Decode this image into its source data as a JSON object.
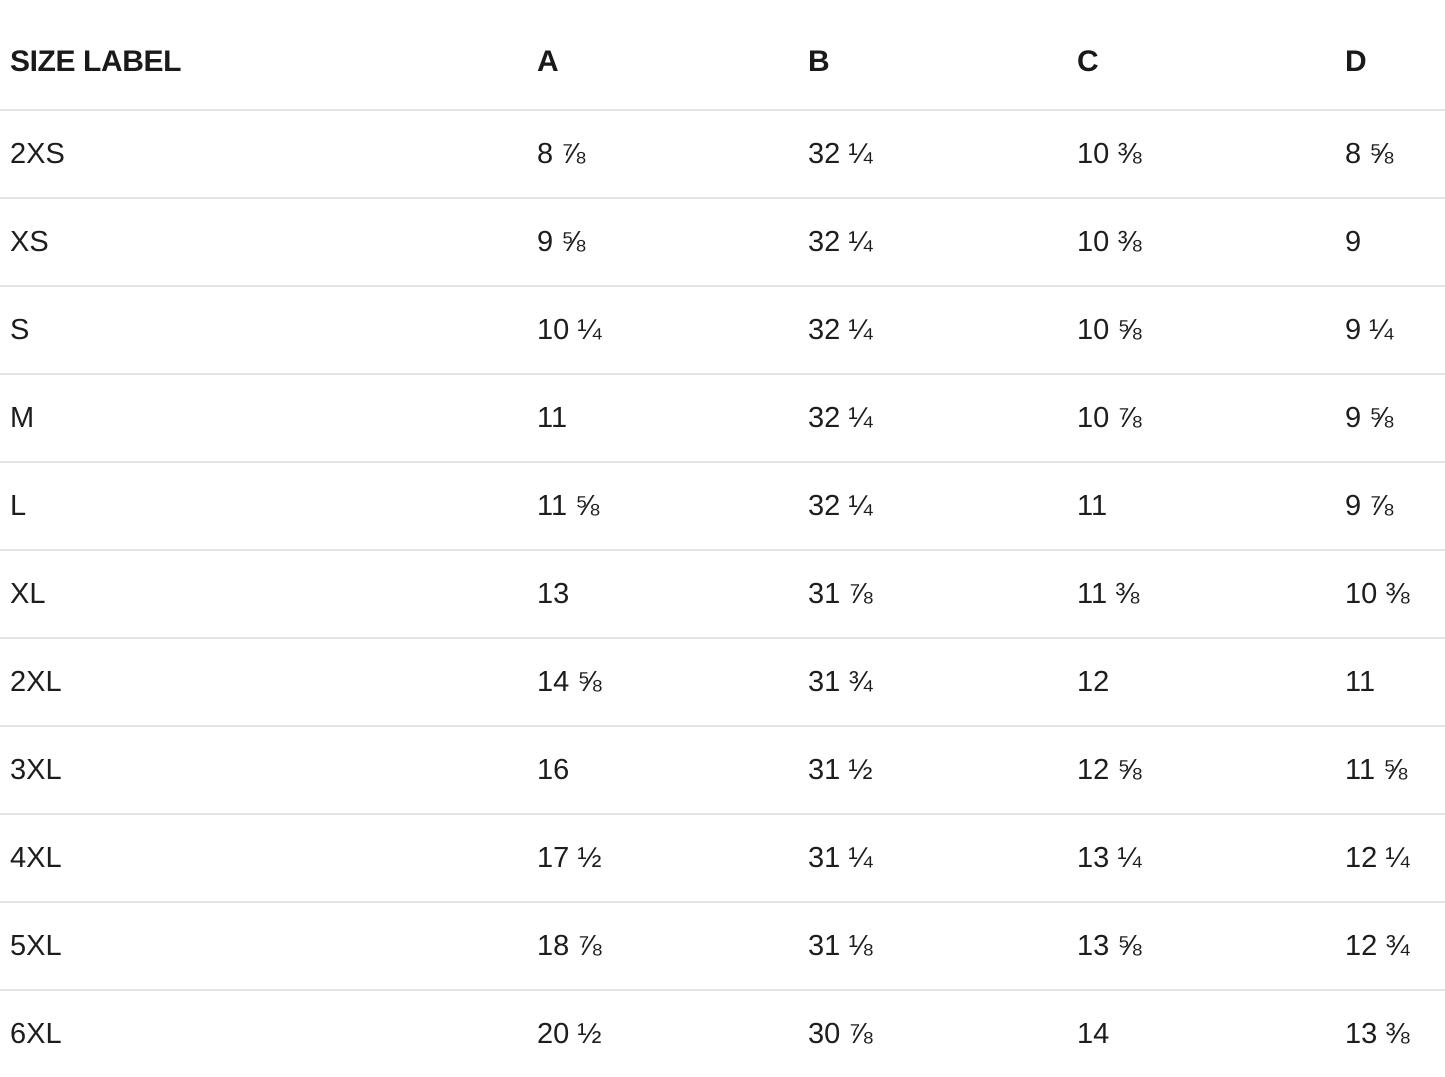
{
  "table": {
    "columns": [
      "SIZE LABEL",
      "A",
      "B",
      "C",
      "D"
    ],
    "rows": [
      {
        "label": "2XS",
        "values": [
          "8 ⅞",
          "32 ¼",
          "10 ⅜",
          "8 ⅝"
        ]
      },
      {
        "label": "XS",
        "values": [
          "9 ⅝",
          "32 ¼",
          "10 ⅜",
          "9"
        ]
      },
      {
        "label": "S",
        "values": [
          "10 ¼",
          "32 ¼",
          "10 ⅝",
          "9 ¼"
        ]
      },
      {
        "label": "M",
        "values": [
          "11",
          "32 ¼",
          "10 ⅞",
          "9 ⅝"
        ]
      },
      {
        "label": "L",
        "values": [
          "11 ⅝",
          "32 ¼",
          "11",
          "9 ⅞"
        ]
      },
      {
        "label": "XL",
        "values": [
          "13",
          "31 ⅞",
          "11 ⅜",
          "10 ⅜"
        ]
      },
      {
        "label": "2XL",
        "values": [
          "14 ⅝",
          "31 ¾",
          "12",
          "11"
        ]
      },
      {
        "label": "3XL",
        "values": [
          "16",
          "31 ½",
          "12 ⅝",
          "11 ⅝"
        ]
      },
      {
        "label": "4XL",
        "values": [
          "17 ½",
          "31 ¼",
          "13 ¼",
          "12 ¼"
        ]
      },
      {
        "label": "5XL",
        "values": [
          "18 ⅞",
          "31 ⅛",
          "13 ⅝",
          "12 ¾"
        ]
      },
      {
        "label": "6XL",
        "values": [
          "20 ½",
          "30 ⅞",
          "14",
          "13 ⅜"
        ]
      }
    ]
  },
  "colors": {
    "background": "#ffffff",
    "header_text": "#1a1a1a",
    "body_text": "#1d1d1d",
    "separator": "#e4e4e4"
  }
}
